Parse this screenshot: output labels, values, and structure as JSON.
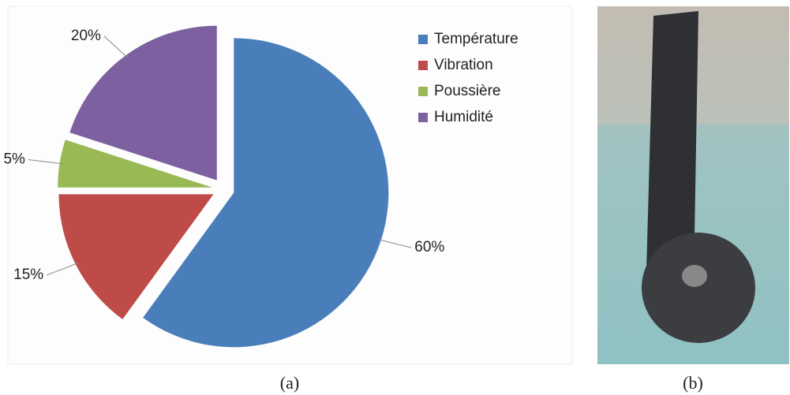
{
  "chart_data": {
    "type": "pie",
    "categories": [
      "Température",
      "Vibration",
      "Poussière",
      "Humidité"
    ],
    "values": [
      60,
      15,
      5,
      20
    ],
    "value_labels": [
      "60%",
      "15%",
      "5%",
      "20%"
    ],
    "colors": [
      "#4a7ebb",
      "#be4b48",
      "#98b954",
      "#7d60a0"
    ]
  },
  "captions": [
    "(a)",
    "(b)"
  ]
}
